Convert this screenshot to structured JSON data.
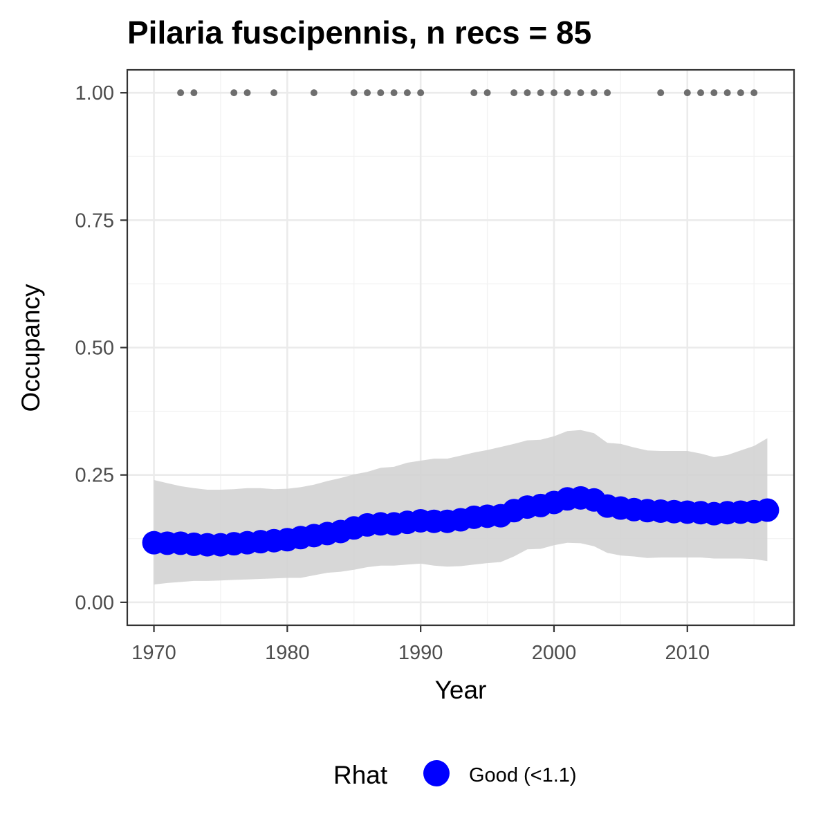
{
  "chart_data": {
    "type": "line",
    "title": "Pilaria fuscipennis, n recs = 85",
    "xlabel": "Year",
    "ylabel": "Occupancy",
    "xlim": [
      1968,
      2018
    ],
    "ylim": [
      -0.045,
      1.045
    ],
    "x_ticks": [
      1970,
      1980,
      1990,
      2000,
      2010
    ],
    "x_tick_labels": [
      "1970",
      "1980",
      "1990",
      "2000",
      "2010"
    ],
    "y_ticks": [
      0,
      0.25,
      0.5,
      0.75,
      1
    ],
    "y_tick_labels": [
      "0.00",
      "0.25",
      "0.50",
      "0.75",
      "1.00"
    ],
    "grid": true,
    "legend": {
      "title": "Rhat",
      "position": "bottom",
      "entries": [
        {
          "label": "Good (<1.1)",
          "color": "#0000ff"
        }
      ]
    },
    "series": [
      {
        "name": "Good (<1.1)",
        "color": "#0000ff",
        "x": [
          1970,
          1971,
          1972,
          1973,
          1974,
          1975,
          1976,
          1977,
          1978,
          1979,
          1980,
          1981,
          1982,
          1983,
          1984,
          1985,
          1986,
          1987,
          1988,
          1989,
          1990,
          1991,
          1992,
          1993,
          1994,
          1995,
          1996,
          1997,
          1998,
          1999,
          2000,
          2001,
          2002,
          2003,
          2004,
          2005,
          2006,
          2007,
          2008,
          2009,
          2010,
          2011,
          2012,
          2013,
          2014,
          2015,
          2016
        ],
        "y": [
          0.117,
          0.116,
          0.116,
          0.114,
          0.113,
          0.113,
          0.115,
          0.117,
          0.119,
          0.121,
          0.123,
          0.127,
          0.131,
          0.135,
          0.139,
          0.146,
          0.152,
          0.154,
          0.154,
          0.157,
          0.16,
          0.159,
          0.159,
          0.162,
          0.167,
          0.169,
          0.17,
          0.18,
          0.187,
          0.19,
          0.196,
          0.203,
          0.205,
          0.201,
          0.189,
          0.185,
          0.182,
          0.18,
          0.179,
          0.178,
          0.177,
          0.176,
          0.174,
          0.176,
          0.177,
          0.178,
          0.181
        ]
      }
    ],
    "ci_band": {
      "color": "#d3d3d3",
      "x": [
        1970,
        1971,
        1972,
        1973,
        1974,
        1975,
        1976,
        1977,
        1978,
        1979,
        1980,
        1981,
        1982,
        1983,
        1984,
        1985,
        1986,
        1987,
        1988,
        1989,
        1990,
        1991,
        1992,
        1993,
        1994,
        1995,
        1996,
        1997,
        1998,
        1999,
        2000,
        2001,
        2002,
        2003,
        2004,
        2005,
        2006,
        2007,
        2008,
        2009,
        2010,
        2011,
        2012,
        2013,
        2014,
        2015,
        2016
      ],
      "lower": [
        0.035,
        0.038,
        0.04,
        0.042,
        0.042,
        0.043,
        0.044,
        0.045,
        0.046,
        0.047,
        0.048,
        0.048,
        0.053,
        0.058,
        0.06,
        0.064,
        0.069,
        0.072,
        0.072,
        0.074,
        0.076,
        0.072,
        0.07,
        0.071,
        0.074,
        0.077,
        0.079,
        0.09,
        0.104,
        0.105,
        0.112,
        0.117,
        0.116,
        0.11,
        0.097,
        0.092,
        0.09,
        0.087,
        0.088,
        0.088,
        0.088,
        0.088,
        0.086,
        0.086,
        0.086,
        0.085,
        0.081
      ],
      "upper": [
        0.24,
        0.234,
        0.228,
        0.224,
        0.221,
        0.221,
        0.222,
        0.224,
        0.224,
        0.222,
        0.223,
        0.226,
        0.231,
        0.238,
        0.244,
        0.251,
        0.256,
        0.264,
        0.266,
        0.274,
        0.278,
        0.282,
        0.282,
        0.288,
        0.294,
        0.299,
        0.305,
        0.311,
        0.318,
        0.319,
        0.326,
        0.336,
        0.338,
        0.332,
        0.313,
        0.311,
        0.304,
        0.298,
        0.297,
        0.297,
        0.297,
        0.292,
        0.285,
        0.289,
        0.298,
        0.307,
        0.322
      ]
    },
    "records": {
      "color": "#6e6e6e",
      "y": 1,
      "x": [
        1972,
        1973,
        1976,
        1977,
        1979,
        1982,
        1985,
        1986,
        1987,
        1988,
        1989,
        1990,
        1994,
        1995,
        1997,
        1998,
        1999,
        2000,
        2001,
        2002,
        2003,
        2004,
        2008,
        2010,
        2011,
        2012,
        2013,
        2014,
        2015
      ]
    }
  }
}
